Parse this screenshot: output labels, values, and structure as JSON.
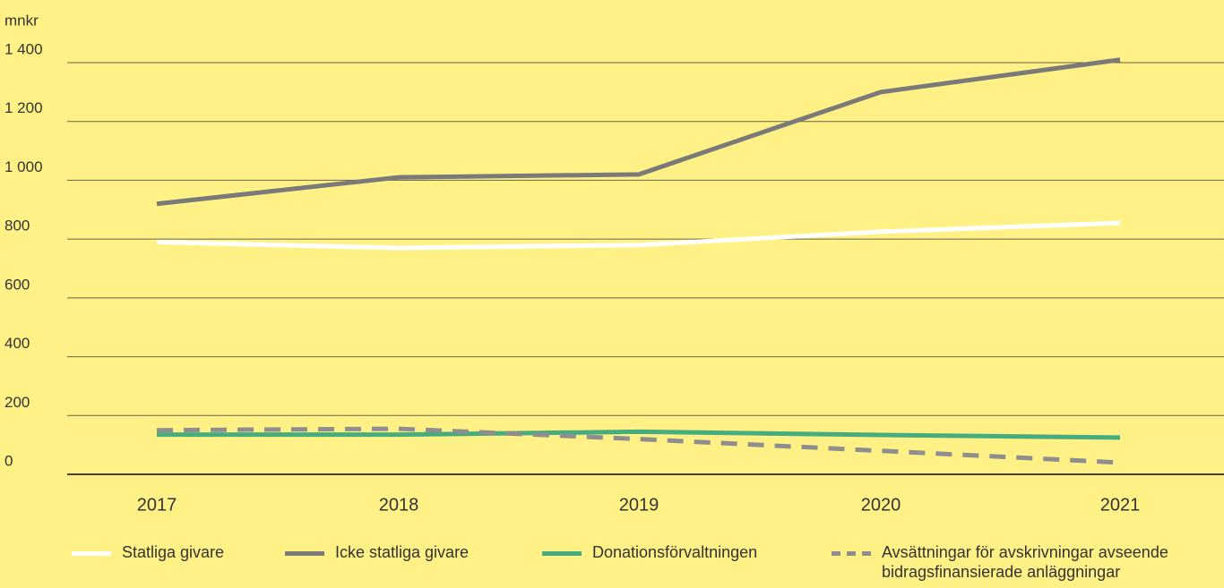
{
  "chart_data": {
    "type": "line",
    "y_unit_label": "mnkr",
    "categories": [
      "2017",
      "2018",
      "2019",
      "2020",
      "2021"
    ],
    "series": [
      {
        "name": "Statliga givare",
        "color": "#ffffff",
        "dash": false,
        "values": [
          790,
          770,
          780,
          825,
          855
        ]
      },
      {
        "name": "Icke statliga givare",
        "color": "#7a7a7a",
        "dash": false,
        "values": [
          920,
          1010,
          1020,
          1300,
          1410
        ]
      },
      {
        "name": "Donationsförvaltningen",
        "color": "#45ad7e",
        "dash": false,
        "values": [
          135,
          135,
          145,
          134,
          125
        ]
      },
      {
        "name": "Avsättningar för avskrivningar avseende bidragsfinansierade anläggningar",
        "color": "#8e8e8e",
        "dash": true,
        "values": [
          150,
          155,
          120,
          80,
          40
        ]
      }
    ],
    "ylim": [
      0,
      1400
    ],
    "yticks": [
      0,
      200,
      400,
      600,
      800,
      {
        "value": 1000,
        "label": "1 000"
      },
      {
        "value": 1200,
        "label": "1 200"
      },
      {
        "value": 1400,
        "label": "1 400"
      }
    ],
    "grid": true
  }
}
